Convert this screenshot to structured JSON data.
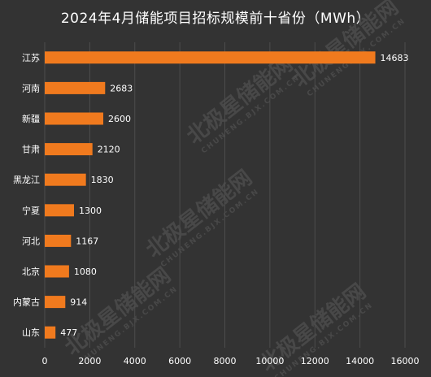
{
  "chart_data": {
    "type": "bar",
    "orientation": "horizontal",
    "title": "2024年4月储能项目招标规模前十省份（MWh）",
    "categories": [
      "江苏",
      "河南",
      "新疆",
      "甘肃",
      "黑龙江",
      "宁夏",
      "河北",
      "北京",
      "内蒙古",
      "山东"
    ],
    "values": [
      14683,
      2683,
      2600,
      2120,
      1830,
      1300,
      1167,
      1080,
      914,
      477
    ],
    "value_labels": [
      "14683",
      "2683",
      "2600",
      "2120",
      "1830",
      "1300",
      "1167",
      "1080",
      "914",
      "477"
    ],
    "xlim": [
      0,
      16000
    ],
    "xticks": [
      0,
      2000,
      4000,
      6000,
      8000,
      10000,
      12000,
      14000,
      16000
    ],
    "xtick_labels": [
      "0",
      "2000",
      "4000",
      "6000",
      "8000",
      "10000",
      "12000",
      "14000",
      "16000"
    ],
    "grid": "vertical",
    "bar_color": "#f07a1e",
    "background_color": "#333333",
    "gridline_color": "#4d4d4d",
    "text_color": "#ffffff"
  },
  "watermark": {
    "text_cn": "北极星储能网",
    "text_en": "CHUNENG.BJX.COM.CN"
  }
}
